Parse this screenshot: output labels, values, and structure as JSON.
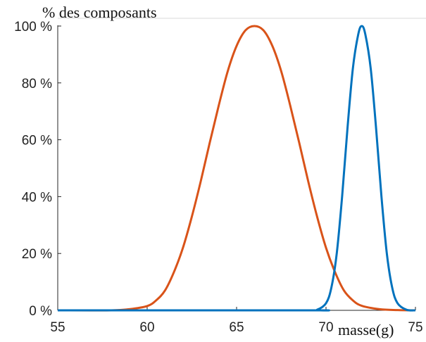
{
  "chart_data": {
    "type": "line",
    "title": "",
    "ylabel": "% des composants",
    "xlabel": "masse(g)",
    "xlim": [
      55,
      75
    ],
    "ylim": [
      0,
      100
    ],
    "x_ticks": [
      "55",
      "60",
      "65",
      "70",
      "75"
    ],
    "y_ticks": [
      "0 %",
      "20 %",
      "40 %",
      "60 %",
      "80 %",
      "100 %"
    ],
    "grid": false,
    "series": [
      {
        "color": "#d95319",
        "x": [
          55,
          58,
          59,
          60,
          60.5,
          61,
          61.5,
          62,
          62.5,
          63,
          63.5,
          64,
          64.5,
          65,
          65.5,
          66,
          66.5,
          67,
          67.5,
          68,
          68.5,
          69,
          69.5,
          70,
          70.5,
          71,
          71.5,
          72,
          73,
          74,
          75
        ],
        "y": [
          0,
          0,
          0.4,
          1.5,
          3.5,
          7,
          13.5,
          22,
          33,
          45.5,
          59,
          72,
          84,
          93,
          98.5,
          100,
          98.5,
          93,
          84,
          72,
          59,
          45.5,
          33,
          22,
          13.5,
          7,
          3.5,
          1.6,
          0.4,
          0.1,
          0
        ]
      },
      {
        "color": "#0072bd",
        "x": [
          55,
          69,
          69.5,
          70,
          70.3,
          70.6,
          70.9,
          71.2,
          71.5,
          71.8,
          72,
          72.2,
          72.5,
          72.8,
          73.1,
          73.4,
          73.7,
          74,
          74.5,
          75
        ],
        "y": [
          0,
          0,
          0.2,
          2.5,
          8,
          20,
          40,
          64,
          85,
          97,
          100,
          97,
          85,
          64,
          40,
          20,
          8,
          2.5,
          0.2,
          0
        ]
      }
    ]
  }
}
